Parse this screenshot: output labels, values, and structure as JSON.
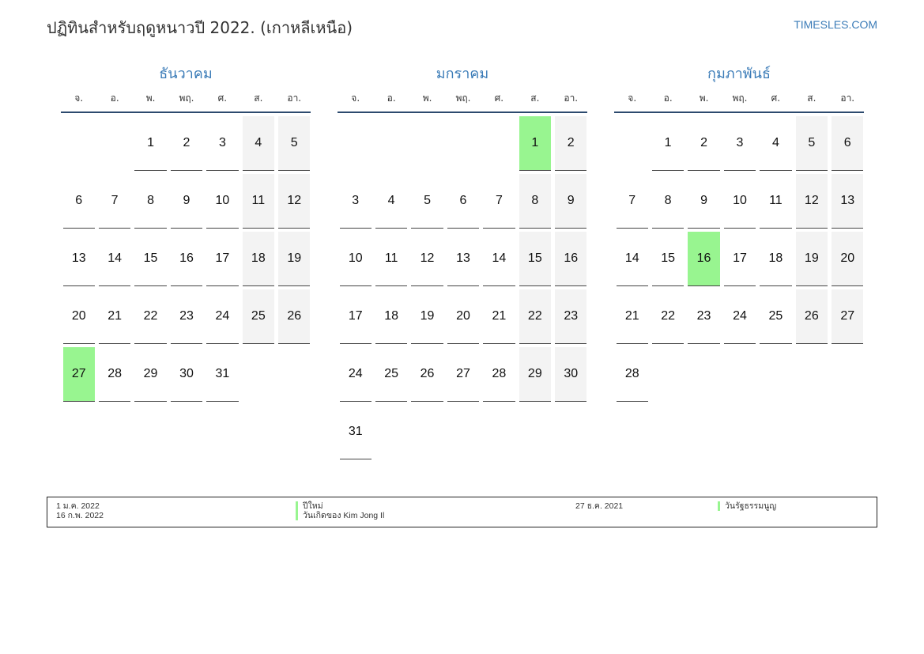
{
  "title": "ปฏิทินสำหรับฤดูหนาวปี 2022. (เกาหลีเหนือ)",
  "brand": "TIMESLES.COM",
  "colors": {
    "accent": "#3a7bb7",
    "holiday": "#98f590",
    "weekend": "#f3f3f3"
  },
  "weekdays": [
    "จ.",
    "อ.",
    "พ.",
    "พฤ.",
    "ศ.",
    "ส.",
    "อา."
  ],
  "months": [
    {
      "name": "ธันวาคม",
      "weeks": [
        [
          "",
          "",
          "1",
          "2",
          "3",
          "4",
          "5"
        ],
        [
          "6",
          "7",
          "8",
          "9",
          "10",
          "11",
          "12"
        ],
        [
          "13",
          "14",
          "15",
          "16",
          "17",
          "18",
          "19"
        ],
        [
          "20",
          "21",
          "22",
          "23",
          "24",
          "25",
          "26"
        ],
        [
          "27",
          "28",
          "29",
          "30",
          "31",
          "",
          ""
        ]
      ],
      "holidays": [
        "27"
      ]
    },
    {
      "name": "มกราคม",
      "weeks": [
        [
          "",
          "",
          "",
          "",
          "",
          "1",
          "2"
        ],
        [
          "3",
          "4",
          "5",
          "6",
          "7",
          "8",
          "9"
        ],
        [
          "10",
          "11",
          "12",
          "13",
          "14",
          "15",
          "16"
        ],
        [
          "17",
          "18",
          "19",
          "20",
          "21",
          "22",
          "23"
        ],
        [
          "24",
          "25",
          "26",
          "27",
          "28",
          "29",
          "30"
        ],
        [
          "31",
          "",
          "",
          "",
          "",
          "",
          ""
        ]
      ],
      "holidays": [
        "1"
      ]
    },
    {
      "name": "กุมภาพันธ์",
      "weeks": [
        [
          "",
          "1",
          "2",
          "3",
          "4",
          "5",
          "6"
        ],
        [
          "7",
          "8",
          "9",
          "10",
          "11",
          "12",
          "13"
        ],
        [
          "14",
          "15",
          "16",
          "17",
          "18",
          "19",
          "20"
        ],
        [
          "21",
          "22",
          "23",
          "24",
          "25",
          "26",
          "27"
        ],
        [
          "28",
          "",
          "",
          "",
          "",
          "",
          ""
        ]
      ],
      "holidays": [
        "16"
      ]
    }
  ],
  "legend": [
    {
      "date": "1 ม.ค. 2022",
      "name": "ปีใหม่"
    },
    {
      "date": "16 ก.พ. 2022",
      "name": "วันเกิดของ Kim Jong Il"
    },
    {
      "date": "27 ธ.ค. 2021",
      "name": "วันรัฐธรรมนูญ"
    }
  ]
}
